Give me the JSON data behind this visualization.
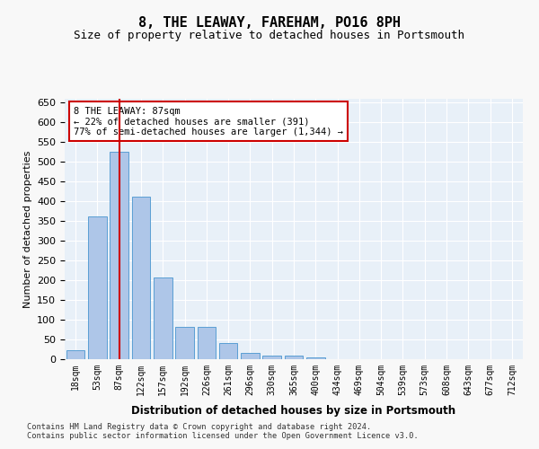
{
  "title": "8, THE LEAWAY, FAREHAM, PO16 8PH",
  "subtitle": "Size of property relative to detached houses in Portsmouth",
  "xlabel": "Distribution of detached houses by size in Portsmouth",
  "ylabel": "Number of detached properties",
  "bar_labels": [
    "18sqm",
    "53sqm",
    "87sqm",
    "122sqm",
    "157sqm",
    "192sqm",
    "226sqm",
    "261sqm",
    "296sqm",
    "330sqm",
    "365sqm",
    "400sqm",
    "434sqm",
    "469sqm",
    "504sqm",
    "539sqm",
    "573sqm",
    "608sqm",
    "643sqm",
    "677sqm",
    "712sqm"
  ],
  "bar_values": [
    22,
    363,
    526,
    413,
    207,
    82,
    82,
    42,
    17,
    10,
    10,
    5,
    1,
    0,
    0,
    1,
    0,
    0,
    1,
    0,
    1
  ],
  "bar_color": "#aec6e8",
  "bar_edge_color": "#5a9fd4",
  "highlight_index": 2,
  "vline_x": 2,
  "vline_color": "#cc0000",
  "annotation_text": "8 THE LEAWAY: 87sqm\n← 22% of detached houses are smaller (391)\n77% of semi-detached houses are larger (1,344) →",
  "annotation_box_color": "#cc0000",
  "annotation_text_color": "#000000",
  "ylim": [
    0,
    660
  ],
  "yticks": [
    0,
    50,
    100,
    150,
    200,
    250,
    300,
    350,
    400,
    450,
    500,
    550,
    600,
    650
  ],
  "footer": "Contains HM Land Registry data © Crown copyright and database right 2024.\nContains public sector information licensed under the Open Government Licence v3.0.",
  "background_color": "#e8f0f8",
  "grid_color": "#ffffff"
}
